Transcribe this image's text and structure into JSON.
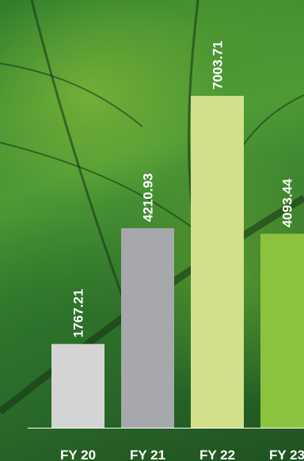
{
  "chart_data": {
    "type": "bar",
    "categories": [
      "FY 20",
      "FY 21",
      "FY 22",
      "FY 23"
    ],
    "values": [
      1767.21,
      4210.93,
      7003.71,
      4093.44
    ],
    "colors": [
      "#d4d4d4",
      "#a7a8ab",
      "#d2e08a",
      "#8dc23f"
    ]
  }
}
